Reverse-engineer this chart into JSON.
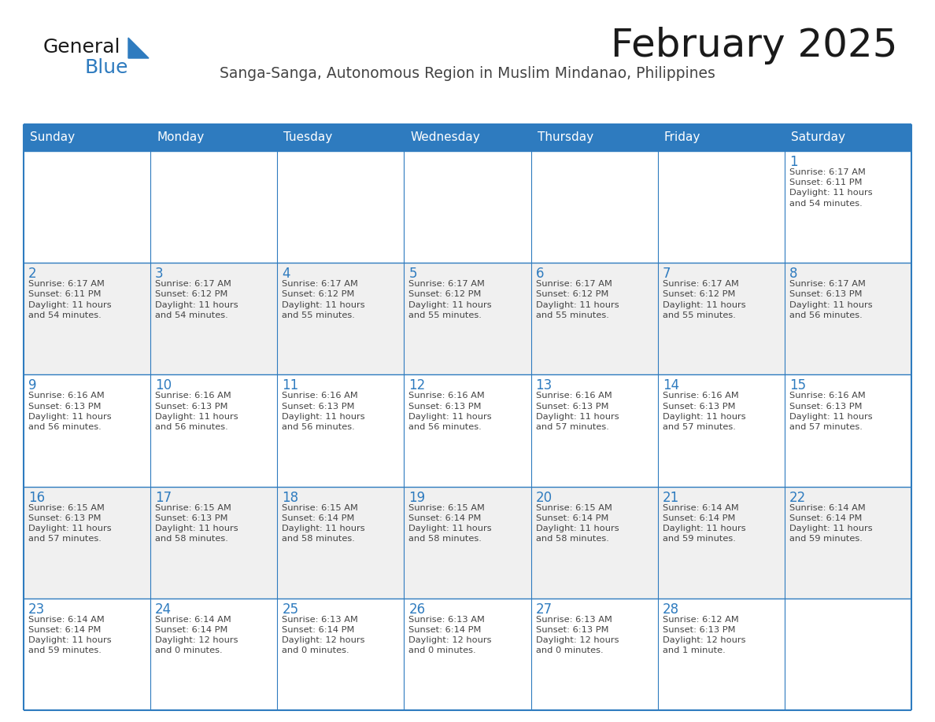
{
  "title": "February 2025",
  "subtitle": "Sanga-Sanga, Autonomous Region in Muslim Mindanao, Philippines",
  "days_of_week": [
    "Sunday",
    "Monday",
    "Tuesday",
    "Wednesday",
    "Thursday",
    "Friday",
    "Saturday"
  ],
  "header_bg": "#2E7BBF",
  "header_text": "#FFFFFF",
  "cell_bg_white": "#FFFFFF",
  "cell_bg_light": "#F0F0F0",
  "border_color": "#2E7BBF",
  "day_number_color": "#2E7BBF",
  "text_color": "#444444",
  "title_color": "#1a1a1a",
  "subtitle_color": "#444444",
  "logo_general_color": "#1a1a1a",
  "logo_blue_color": "#2E7BBF",
  "calendar_data": [
    [
      null,
      null,
      null,
      null,
      null,
      null,
      {
        "day": 1,
        "sunrise": "6:17 AM",
        "sunset": "6:11 PM",
        "daylight": "11 hours\nand 54 minutes."
      }
    ],
    [
      {
        "day": 2,
        "sunrise": "6:17 AM",
        "sunset": "6:11 PM",
        "daylight": "11 hours\nand 54 minutes."
      },
      {
        "day": 3,
        "sunrise": "6:17 AM",
        "sunset": "6:12 PM",
        "daylight": "11 hours\nand 54 minutes."
      },
      {
        "day": 4,
        "sunrise": "6:17 AM",
        "sunset": "6:12 PM",
        "daylight": "11 hours\nand 55 minutes."
      },
      {
        "day": 5,
        "sunrise": "6:17 AM",
        "sunset": "6:12 PM",
        "daylight": "11 hours\nand 55 minutes."
      },
      {
        "day": 6,
        "sunrise": "6:17 AM",
        "sunset": "6:12 PM",
        "daylight": "11 hours\nand 55 minutes."
      },
      {
        "day": 7,
        "sunrise": "6:17 AM",
        "sunset": "6:12 PM",
        "daylight": "11 hours\nand 55 minutes."
      },
      {
        "day": 8,
        "sunrise": "6:17 AM",
        "sunset": "6:13 PM",
        "daylight": "11 hours\nand 56 minutes."
      }
    ],
    [
      {
        "day": 9,
        "sunrise": "6:16 AM",
        "sunset": "6:13 PM",
        "daylight": "11 hours\nand 56 minutes."
      },
      {
        "day": 10,
        "sunrise": "6:16 AM",
        "sunset": "6:13 PM",
        "daylight": "11 hours\nand 56 minutes."
      },
      {
        "day": 11,
        "sunrise": "6:16 AM",
        "sunset": "6:13 PM",
        "daylight": "11 hours\nand 56 minutes."
      },
      {
        "day": 12,
        "sunrise": "6:16 AM",
        "sunset": "6:13 PM",
        "daylight": "11 hours\nand 56 minutes."
      },
      {
        "day": 13,
        "sunrise": "6:16 AM",
        "sunset": "6:13 PM",
        "daylight": "11 hours\nand 57 minutes."
      },
      {
        "day": 14,
        "sunrise": "6:16 AM",
        "sunset": "6:13 PM",
        "daylight": "11 hours\nand 57 minutes."
      },
      {
        "day": 15,
        "sunrise": "6:16 AM",
        "sunset": "6:13 PM",
        "daylight": "11 hours\nand 57 minutes."
      }
    ],
    [
      {
        "day": 16,
        "sunrise": "6:15 AM",
        "sunset": "6:13 PM",
        "daylight": "11 hours\nand 57 minutes."
      },
      {
        "day": 17,
        "sunrise": "6:15 AM",
        "sunset": "6:13 PM",
        "daylight": "11 hours\nand 58 minutes."
      },
      {
        "day": 18,
        "sunrise": "6:15 AM",
        "sunset": "6:14 PM",
        "daylight": "11 hours\nand 58 minutes."
      },
      {
        "day": 19,
        "sunrise": "6:15 AM",
        "sunset": "6:14 PM",
        "daylight": "11 hours\nand 58 minutes."
      },
      {
        "day": 20,
        "sunrise": "6:15 AM",
        "sunset": "6:14 PM",
        "daylight": "11 hours\nand 58 minutes."
      },
      {
        "day": 21,
        "sunrise": "6:14 AM",
        "sunset": "6:14 PM",
        "daylight": "11 hours\nand 59 minutes."
      },
      {
        "day": 22,
        "sunrise": "6:14 AM",
        "sunset": "6:14 PM",
        "daylight": "11 hours\nand 59 minutes."
      }
    ],
    [
      {
        "day": 23,
        "sunrise": "6:14 AM",
        "sunset": "6:14 PM",
        "daylight": "11 hours\nand 59 minutes."
      },
      {
        "day": 24,
        "sunrise": "6:14 AM",
        "sunset": "6:14 PM",
        "daylight": "12 hours\nand 0 minutes."
      },
      {
        "day": 25,
        "sunrise": "6:13 AM",
        "sunset": "6:14 PM",
        "daylight": "12 hours\nand 0 minutes."
      },
      {
        "day": 26,
        "sunrise": "6:13 AM",
        "sunset": "6:14 PM",
        "daylight": "12 hours\nand 0 minutes."
      },
      {
        "day": 27,
        "sunrise": "6:13 AM",
        "sunset": "6:13 PM",
        "daylight": "12 hours\nand 0 minutes."
      },
      {
        "day": 28,
        "sunrise": "6:12 AM",
        "sunset": "6:13 PM",
        "daylight": "12 hours\nand 1 minute."
      },
      null
    ]
  ]
}
